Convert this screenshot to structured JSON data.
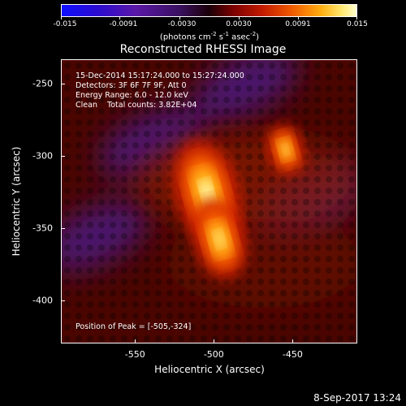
{
  "colorbar": {
    "ticks": [
      "-0.015",
      "-0.0091",
      "-0.0030",
      "0.0030",
      "0.0091",
      "0.015"
    ],
    "units_text": "(photons cm",
    "units_exp1": "-2",
    "units_mid": " s",
    "units_exp2": "-1",
    "units_mid2": " asec",
    "units_exp3": "-2",
    "units_end": ")"
  },
  "title": "Reconstructed RHESSI Image",
  "info": {
    "line1": "15-Dec-2014 15:17:24.000 to 15:27:24.000",
    "line2": "Detectors: 3F 6F 7F 9F, Att 0",
    "line3": "Energy Range: 6.0 - 12.0 keV",
    "line4": "Clean    Total counts: 3.82E+04",
    "peak": "Position of Peak = [-505,-324]"
  },
  "chart_data": {
    "type": "heatmap",
    "title": "Reconstructed RHESSI Image",
    "xlabel": "Heliocentric X (arcsec)",
    "ylabel": "Heliocentric Y (arcsec)",
    "xlim": [
      -597,
      -409
    ],
    "ylim": [
      -430,
      -233
    ],
    "xticks": [
      "-550",
      "-500",
      "-450"
    ],
    "yticks": [
      "-250",
      "-300",
      "-350",
      "-400"
    ],
    "xtick_values": [
      -550,
      -500,
      -450
    ],
    "ytick_values": [
      -250,
      -300,
      -350,
      -400
    ],
    "colorbar_range": [
      -0.015,
      0.015
    ],
    "colormap": [
      "#1010ff",
      "#5a18a8",
      "#1a0008",
      "#c31a00",
      "#f05a00",
      "#ffae10",
      "#ffffd0"
    ],
    "sources": [
      {
        "x": -505,
        "y": -324,
        "peak": 0.015
      },
      {
        "x": -497,
        "y": -357,
        "peak": 0.011
      },
      {
        "x": -455,
        "y": -295,
        "peak": 0.006
      }
    ],
    "negative_regions": [
      {
        "x": -540,
        "y": -290
      },
      {
        "x": -575,
        "y": -355
      },
      {
        "x": -480,
        "y": -250
      },
      {
        "x": -440,
        "y": -330
      }
    ]
  },
  "footer": {
    "date": "8-Sep-2017 13:24"
  }
}
